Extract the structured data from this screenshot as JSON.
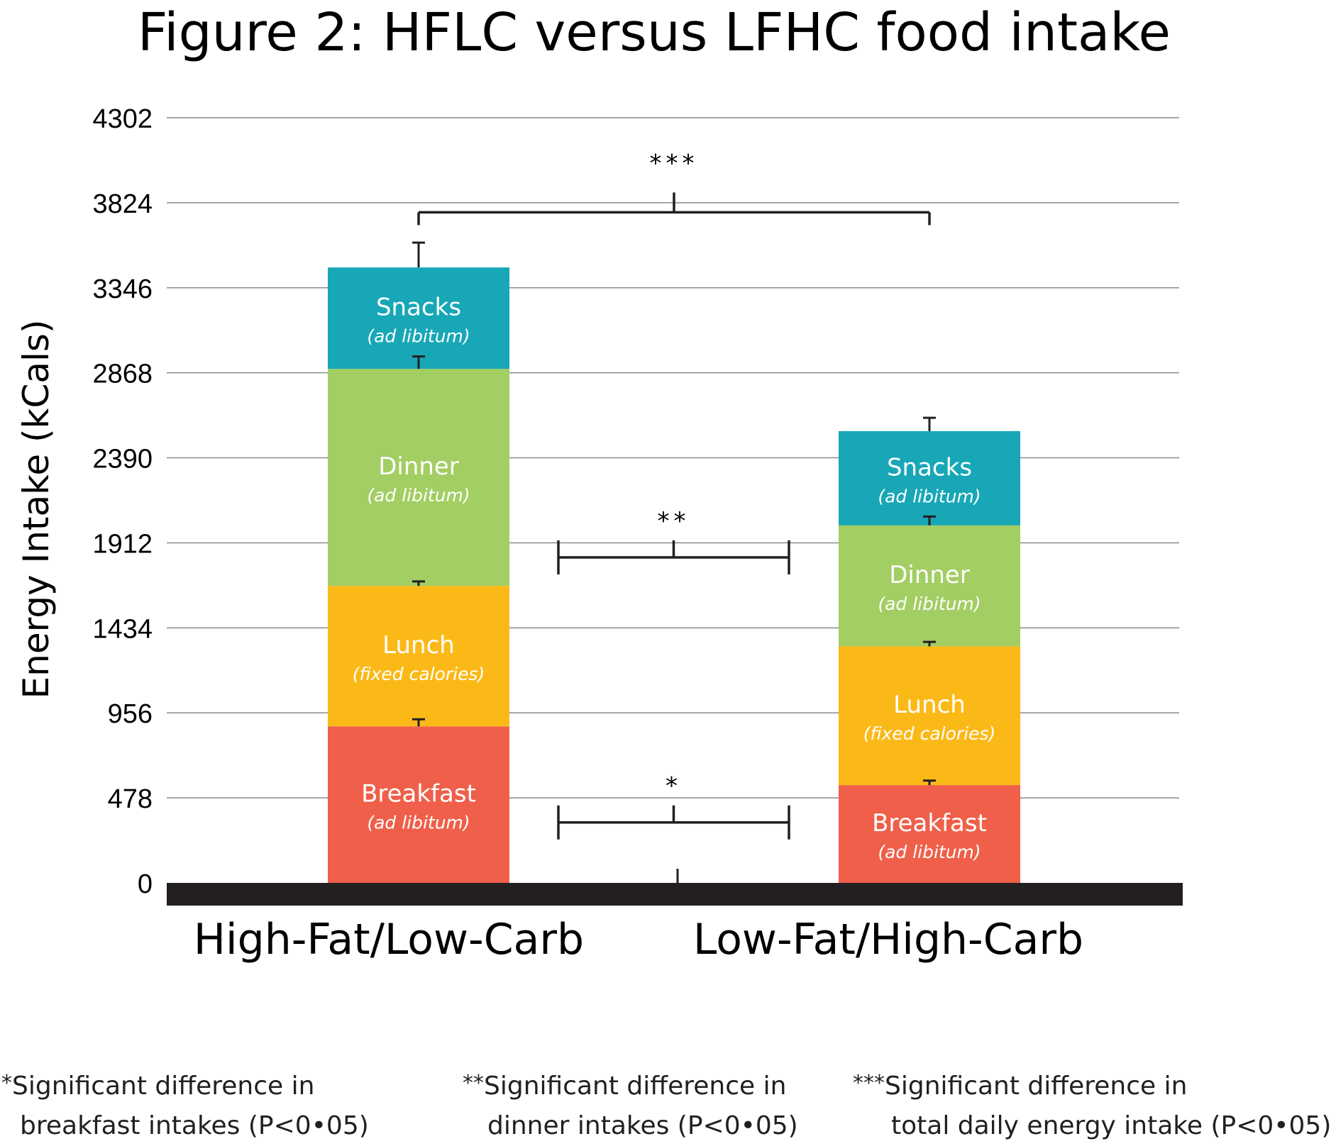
{
  "chart_data": {
    "type": "bar",
    "stacked": true,
    "title": "Figure 2: HFLC versus LFHC food intake",
    "xlabel": "",
    "ylabel": "Energy Intake (kCals)",
    "ylim": [
      0,
      4302
    ],
    "yticks": [
      "0",
      "478",
      "956",
      "1434",
      "1912",
      "2390",
      "2868",
      "3346",
      "3824",
      "4302"
    ],
    "grid": true,
    "categories": [
      "High-Fat/Low-Carb",
      "Low-Fat/High-Carb"
    ],
    "series": [
      {
        "name": "Breakfast",
        "note": "(ad libitum)",
        "color": "#ef5f4a",
        "values": [
          880,
          550
        ],
        "errors": [
          40,
          25
        ]
      },
      {
        "name": "Lunch",
        "note": "(fixed calories)",
        "color": "#fbb918",
        "values": [
          790,
          780
        ],
        "errors": [
          25,
          25
        ]
      },
      {
        "name": "Dinner",
        "note": "(ad libitum)",
        "color": "#a2ce63",
        "values": [
          1220,
          680
        ],
        "errors": [
          70,
          50
        ]
      },
      {
        "name": "Snacks",
        "note": "(ad libitum)",
        "color": "#17a7b7",
        "values": [
          570,
          530
        ],
        "errors": [
          140,
          75
        ]
      }
    ],
    "significance": [
      {
        "stars": "*",
        "y": 340
      },
      {
        "stars": "**",
        "y": 1830
      },
      {
        "stars": "***",
        "y": 3770
      }
    ]
  },
  "footnotes": [
    {
      "stars": "*",
      "line1": "Significant difference in",
      "line2": "breakfast intakes (P<0•05)"
    },
    {
      "stars": "**",
      "line1": "Significant difference in",
      "line2": "dinner intakes (P<0•05)"
    },
    {
      "stars": "***",
      "line1": "Significant difference in",
      "line2": "total daily energy intake (P<0•05)"
    }
  ]
}
